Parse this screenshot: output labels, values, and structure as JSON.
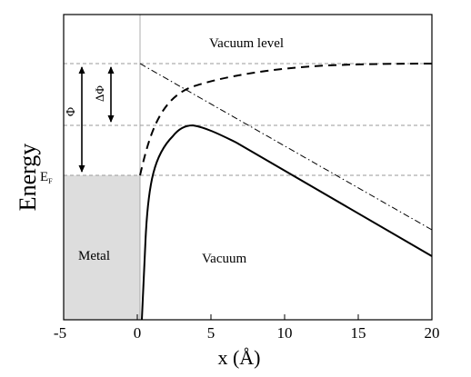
{
  "diagram": {
    "y_axis_label": "Energy",
    "x_axis_label": "x (Å)",
    "x_ticks": [
      "-5",
      "0",
      "5",
      "10",
      "15",
      "20"
    ],
    "level_labels": {
      "vacuum_level": "Vacuum level",
      "fermi_symbol": "E",
      "fermi_subscript": "F"
    },
    "region_labels": {
      "metal": "Metal",
      "vacuum": "Vacuum"
    },
    "arrow_labels": {
      "work_function": "Φ",
      "work_function_change": "ΔΦ"
    },
    "colors": {
      "metal_fill": "#dddddd",
      "reference_lines": "#9a9a9a",
      "curves": "#000000"
    }
  }
}
